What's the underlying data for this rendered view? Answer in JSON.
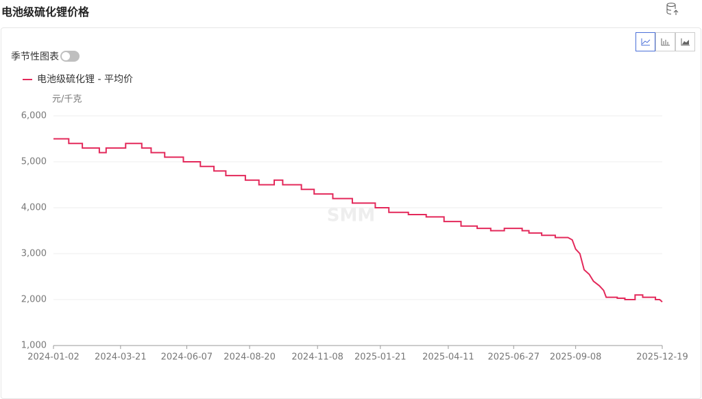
{
  "header": {
    "title": "电池级硫化锂价格"
  },
  "controls": {
    "seasonal_label": "季节性图表"
  },
  "chart_data": {
    "type": "line",
    "unit_label": "元/千克",
    "watermark": "SMM",
    "xlim": [
      "2024-01-02",
      "2025-12-19"
    ],
    "xticks": [
      "2024-01-02",
      "2024-03-21",
      "2024-06-07",
      "2024-08-20",
      "2024-11-08",
      "2025-01-21",
      "2025-04-11",
      "2025-06-27",
      "2025-09-08",
      "2025-12-19"
    ],
    "ylim": [
      1000,
      6000
    ],
    "yticks": [
      {
        "value": 1000,
        "label": "1,000"
      },
      {
        "value": 2000,
        "label": "2,000"
      },
      {
        "value": 3000,
        "label": "3,000"
      },
      {
        "value": 4000,
        "label": "4,000"
      },
      {
        "value": 5000,
        "label": "5,000"
      },
      {
        "value": 6000,
        "label": "6,000"
      }
    ],
    "grid": true,
    "legend": "top-left",
    "series": [
      {
        "name": "电池级硫化锂 - 平均价",
        "color": "#e3285a",
        "x": [
          "2024-01-02",
          "2024-01-20",
          "2024-01-20",
          "2024-02-05",
          "2024-02-05",
          "2024-02-25",
          "2024-02-25",
          "2024-03-04",
          "2024-03-04",
          "2024-03-27",
          "2024-03-27",
          "2024-04-15",
          "2024-04-15",
          "2024-04-26",
          "2024-04-26",
          "2024-05-12",
          "2024-05-12",
          "2024-06-03",
          "2024-06-03",
          "2024-06-23",
          "2024-06-23",
          "2024-07-09",
          "2024-07-09",
          "2024-07-23",
          "2024-07-23",
          "2024-08-15",
          "2024-08-15",
          "2024-08-31",
          "2024-08-31",
          "2024-09-18",
          "2024-09-18",
          "2024-09-28",
          "2024-09-28",
          "2024-10-20",
          "2024-10-20",
          "2024-11-04",
          "2024-11-04",
          "2024-11-26",
          "2024-11-26",
          "2024-12-19",
          "2024-12-19",
          "2025-01-15",
          "2025-01-15",
          "2025-01-31",
          "2025-01-31",
          "2025-02-23",
          "2025-02-23",
          "2025-03-16",
          "2025-03-16",
          "2025-04-06",
          "2025-04-06",
          "2025-04-26",
          "2025-04-26",
          "2025-05-15",
          "2025-05-15",
          "2025-05-31",
          "2025-05-31",
          "2025-06-16",
          "2025-06-16",
          "2025-07-07",
          "2025-07-07",
          "2025-07-15",
          "2025-07-15",
          "2025-07-30",
          "2025-07-30",
          "2025-08-15",
          "2025-08-15",
          "2025-08-30",
          "2025-09-04",
          "2025-09-08",
          "2025-09-13",
          "2025-09-18",
          "2025-09-24",
          "2025-09-29",
          "2025-10-06",
          "2025-10-11",
          "2025-10-14",
          "2025-10-27",
          "2025-10-27",
          "2025-11-05",
          "2025-11-05",
          "2025-11-17",
          "2025-11-17",
          "2025-11-26",
          "2025-11-26",
          "2025-12-11",
          "2025-12-11",
          "2025-12-16",
          "2025-12-19"
        ],
        "values": [
          5500,
          5500,
          5400,
          5400,
          5300,
          5300,
          5200,
          5200,
          5300,
          5300,
          5400,
          5400,
          5300,
          5300,
          5200,
          5200,
          5100,
          5100,
          5000,
          5000,
          4900,
          4900,
          4800,
          4800,
          4700,
          4700,
          4600,
          4600,
          4500,
          4500,
          4600,
          4600,
          4500,
          4500,
          4400,
          4400,
          4300,
          4300,
          4200,
          4200,
          4100,
          4100,
          4000,
          4000,
          3900,
          3900,
          3850,
          3850,
          3800,
          3800,
          3700,
          3700,
          3600,
          3600,
          3550,
          3550,
          3500,
          3500,
          3550,
          3550,
          3500,
          3500,
          3450,
          3450,
          3400,
          3400,
          3350,
          3350,
          3300,
          3100,
          3000,
          2650,
          2550,
          2400,
          2300,
          2200,
          2050,
          2050,
          2030,
          2030,
          2000,
          2000,
          2100,
          2100,
          2050,
          2050,
          2000,
          2000,
          1950
        ]
      }
    ]
  }
}
